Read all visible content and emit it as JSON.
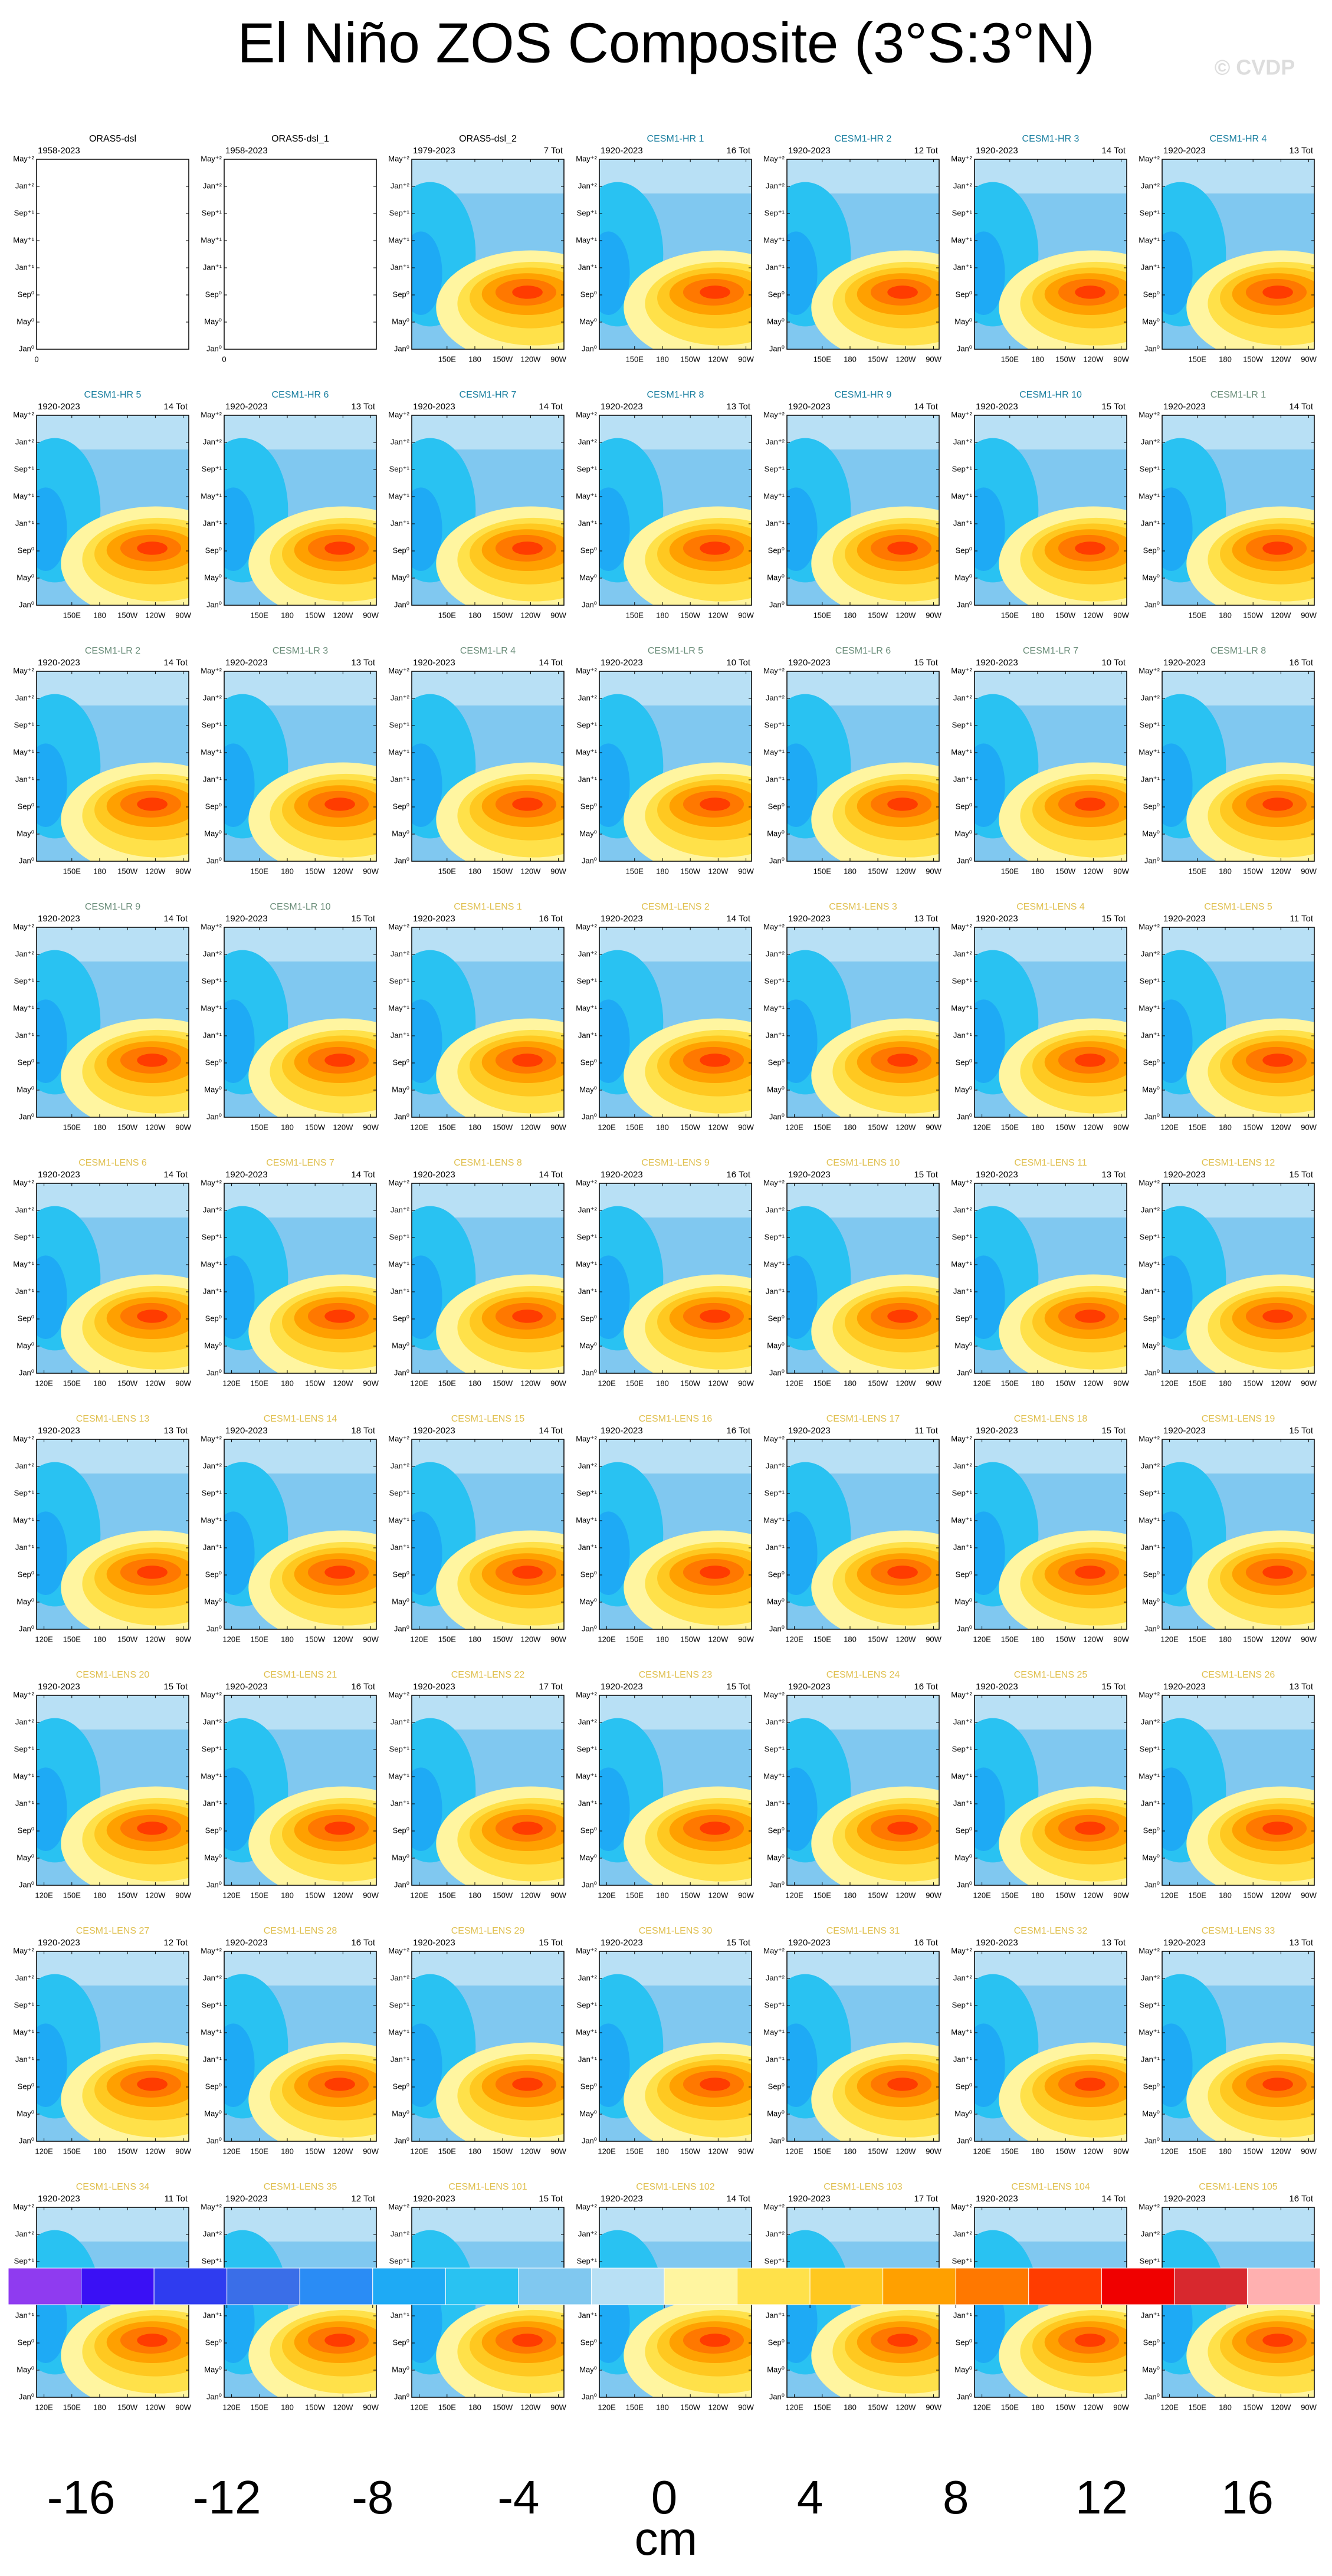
{
  "chart_data": {
    "type": "hovmoller-grid",
    "title": "El Niño ZOS Composite (3°S:3°N)",
    "watermark": "© CVDP",
    "ylim": [
      0,
      28
    ],
    "yticks": [
      {
        "value": 0,
        "label": "Jan⁰"
      },
      {
        "value": 4,
        "label": "May⁰"
      },
      {
        "value": 8,
        "label": "Sep⁰"
      },
      {
        "value": 12,
        "label": "Jan⁺¹"
      },
      {
        "value": 16,
        "label": "May⁺¹"
      },
      {
        "value": 20,
        "label": "Sep⁺¹"
      },
      {
        "value": 24,
        "label": "Jan⁺²"
      },
      {
        "value": 28,
        "label": "May⁺²"
      }
    ],
    "axes": {
      "hr": {
        "xlim": [
          112,
          276
        ],
        "xticks": [
          {
            "value": 150,
            "label": "150E"
          },
          180,
          {
            "value": 210,
            "label": "150W"
          },
          {
            "value": 240,
            "label": "120W"
          },
          {
            "value": 270,
            "label": "90W"
          }
        ]
      },
      "lens": {
        "xlim": [
          112,
          276
        ],
        "xticks": [
          {
            "value": 120,
            "label": "120E"
          },
          {
            "value": 150,
            "label": "150E"
          },
          180,
          {
            "value": 210,
            "label": "150W"
          },
          {
            "value": 240,
            "label": "120W"
          },
          {
            "value": 270,
            "label": "90W"
          }
        ]
      },
      "empty": {
        "xlim": [
          0,
          1
        ],
        "xticks": [
          0
        ]
      }
    },
    "panels": [
      {
        "name": "ORAS5-dsl",
        "years": "1958-2023",
        "axes": "empty",
        "color": "#000000"
      },
      {
        "name": "ORAS5-dsl_1",
        "years": "1958-2023",
        "axes": "empty",
        "color": "#000000"
      },
      {
        "name": "ORAS5-dsl_2",
        "years": "1979-2023",
        "total": "7 Tot",
        "axes": "hr",
        "color": "#000000"
      },
      {
        "name": "CESM1-HR 1",
        "years": "1920-2023",
        "total": "16 Tot",
        "axes": "hr",
        "color": "#1a7fa0"
      },
      {
        "name": "CESM1-HR 2",
        "years": "1920-2023",
        "total": "12 Tot",
        "axes": "hr",
        "color": "#1a7fa0"
      },
      {
        "name": "CESM1-HR 3",
        "years": "1920-2023",
        "total": "14 Tot",
        "axes": "hr",
        "color": "#1a7fa0"
      },
      {
        "name": "CESM1-HR 4",
        "years": "1920-2023",
        "total": "13 Tot",
        "axes": "hr",
        "color": "#1a7fa0"
      },
      {
        "name": "CESM1-HR 5",
        "years": "1920-2023",
        "total": "14 Tot",
        "axes": "hr",
        "color": "#1a7fa0"
      },
      {
        "name": "CESM1-HR 6",
        "years": "1920-2023",
        "total": "13 Tot",
        "axes": "hr",
        "color": "#1a7fa0"
      },
      {
        "name": "CESM1-HR 7",
        "years": "1920-2023",
        "total": "14 Tot",
        "axes": "hr",
        "color": "#1a7fa0"
      },
      {
        "name": "CESM1-HR 8",
        "years": "1920-2023",
        "total": "13 Tot",
        "axes": "hr",
        "color": "#1a7fa0"
      },
      {
        "name": "CESM1-HR 9",
        "years": "1920-2023",
        "total": "14 Tot",
        "axes": "hr",
        "color": "#1a7fa0"
      },
      {
        "name": "CESM1-HR 10",
        "years": "1920-2023",
        "total": "15 Tot",
        "axes": "hr",
        "color": "#1a7fa0"
      },
      {
        "name": "CESM1-LR 1",
        "years": "1920-2023",
        "total": "14 Tot",
        "axes": "hr",
        "color": "#6b8e7a"
      },
      {
        "name": "CESM1-LR 2",
        "years": "1920-2023",
        "total": "14 Tot",
        "axes": "hr",
        "color": "#6b8e7a"
      },
      {
        "name": "CESM1-LR 3",
        "years": "1920-2023",
        "total": "13 Tot",
        "axes": "hr",
        "color": "#6b8e7a"
      },
      {
        "name": "CESM1-LR 4",
        "years": "1920-2023",
        "total": "14 Tot",
        "axes": "hr",
        "color": "#6b8e7a"
      },
      {
        "name": "CESM1-LR 5",
        "years": "1920-2023",
        "total": "10 Tot",
        "axes": "hr",
        "color": "#6b8e7a"
      },
      {
        "name": "CESM1-LR 6",
        "years": "1920-2023",
        "total": "15 Tot",
        "axes": "hr",
        "color": "#6b8e7a"
      },
      {
        "name": "CESM1-LR 7",
        "years": "1920-2023",
        "total": "10 Tot",
        "axes": "hr",
        "color": "#6b8e7a"
      },
      {
        "name": "CESM1-LR 8",
        "years": "1920-2023",
        "total": "16 Tot",
        "axes": "hr",
        "color": "#6b8e7a"
      },
      {
        "name": "CESM1-LR 9",
        "years": "1920-2023",
        "total": "14 Tot",
        "axes": "hr",
        "color": "#6b8e7a"
      },
      {
        "name": "CESM1-LR 10",
        "years": "1920-2023",
        "total": "15 Tot",
        "axes": "hr",
        "color": "#6b8e7a"
      },
      {
        "name": "CESM1-LENS 1",
        "years": "1920-2023",
        "total": "16 Tot",
        "axes": "lens",
        "color": "#e0c050"
      },
      {
        "name": "CESM1-LENS 2",
        "years": "1920-2023",
        "total": "14 Tot",
        "axes": "lens",
        "color": "#e0c050"
      },
      {
        "name": "CESM1-LENS 3",
        "years": "1920-2023",
        "total": "13 Tot",
        "axes": "lens",
        "color": "#e0c050"
      },
      {
        "name": "CESM1-LENS 4",
        "years": "1920-2023",
        "total": "15 Tot",
        "axes": "lens",
        "color": "#e0c050"
      },
      {
        "name": "CESM1-LENS 5",
        "years": "1920-2023",
        "total": "11 Tot",
        "axes": "lens",
        "color": "#e0c050"
      },
      {
        "name": "CESM1-LENS 6",
        "years": "1920-2023",
        "total": "14 Tot",
        "axes": "lens",
        "color": "#e0c050"
      },
      {
        "name": "CESM1-LENS 7",
        "years": "1920-2023",
        "total": "14 Tot",
        "axes": "lens",
        "color": "#e0c050"
      },
      {
        "name": "CESM1-LENS 8",
        "years": "1920-2023",
        "total": "14 Tot",
        "axes": "lens",
        "color": "#e0c050"
      },
      {
        "name": "CESM1-LENS 9",
        "years": "1920-2023",
        "total": "16 Tot",
        "axes": "lens",
        "color": "#e0c050"
      },
      {
        "name": "CESM1-LENS 10",
        "years": "1920-2023",
        "total": "15 Tot",
        "axes": "lens",
        "color": "#e0c050"
      },
      {
        "name": "CESM1-LENS 11",
        "years": "1920-2023",
        "total": "13 Tot",
        "axes": "lens",
        "color": "#e0c050"
      },
      {
        "name": "CESM1-LENS 12",
        "years": "1920-2023",
        "total": "15 Tot",
        "axes": "lens",
        "color": "#e0c050"
      },
      {
        "name": "CESM1-LENS 13",
        "years": "1920-2023",
        "total": "13 Tot",
        "axes": "lens",
        "color": "#e0c050"
      },
      {
        "name": "CESM1-LENS 14",
        "years": "1920-2023",
        "total": "18 Tot",
        "axes": "lens",
        "color": "#e0c050"
      },
      {
        "name": "CESM1-LENS 15",
        "years": "1920-2023",
        "total": "14 Tot",
        "axes": "lens",
        "color": "#e0c050"
      },
      {
        "name": "CESM1-LENS 16",
        "years": "1920-2023",
        "total": "16 Tot",
        "axes": "lens",
        "color": "#e0c050"
      },
      {
        "name": "CESM1-LENS 17",
        "years": "1920-2023",
        "total": "11 Tot",
        "axes": "lens",
        "color": "#e0c050"
      },
      {
        "name": "CESM1-LENS 18",
        "years": "1920-2023",
        "total": "15 Tot",
        "axes": "lens",
        "color": "#e0c050"
      },
      {
        "name": "CESM1-LENS 19",
        "years": "1920-2023",
        "total": "15 Tot",
        "axes": "lens",
        "color": "#e0c050"
      },
      {
        "name": "CESM1-LENS 20",
        "years": "1920-2023",
        "total": "15 Tot",
        "axes": "lens",
        "color": "#e0c050"
      },
      {
        "name": "CESM1-LENS 21",
        "years": "1920-2023",
        "total": "16 Tot",
        "axes": "lens",
        "color": "#e0c050"
      },
      {
        "name": "CESM1-LENS 22",
        "years": "1920-2023",
        "total": "17 Tot",
        "axes": "lens",
        "color": "#e0c050"
      },
      {
        "name": "CESM1-LENS 23",
        "years": "1920-2023",
        "total": "15 Tot",
        "axes": "lens",
        "color": "#e0c050"
      },
      {
        "name": "CESM1-LENS 24",
        "years": "1920-2023",
        "total": "16 Tot",
        "axes": "lens",
        "color": "#e0c050"
      },
      {
        "name": "CESM1-LENS 25",
        "years": "1920-2023",
        "total": "15 Tot",
        "axes": "lens",
        "color": "#e0c050"
      },
      {
        "name": "CESM1-LENS 26",
        "years": "1920-2023",
        "total": "13 Tot",
        "axes": "lens",
        "color": "#e0c050"
      },
      {
        "name": "CESM1-LENS 27",
        "years": "1920-2023",
        "total": "12 Tot",
        "axes": "lens",
        "color": "#e0c050"
      },
      {
        "name": "CESM1-LENS 28",
        "years": "1920-2023",
        "total": "16 Tot",
        "axes": "lens",
        "color": "#e0c050"
      },
      {
        "name": "CESM1-LENS 29",
        "years": "1920-2023",
        "total": "15 Tot",
        "axes": "lens",
        "color": "#e0c050"
      },
      {
        "name": "CESM1-LENS 30",
        "years": "1920-2023",
        "total": "15 Tot",
        "axes": "lens",
        "color": "#e0c050"
      },
      {
        "name": "CESM1-LENS 31",
        "years": "1920-2023",
        "total": "16 Tot",
        "axes": "lens",
        "color": "#e0c050"
      },
      {
        "name": "CESM1-LENS 32",
        "years": "1920-2023",
        "total": "13 Tot",
        "axes": "lens",
        "color": "#e0c050"
      },
      {
        "name": "CESM1-LENS 33",
        "years": "1920-2023",
        "total": "13 Tot",
        "axes": "lens",
        "color": "#e0c050"
      },
      {
        "name": "CESM1-LENS 34",
        "years": "1920-2023",
        "total": "11 Tot",
        "axes": "lens",
        "color": "#e0c050"
      },
      {
        "name": "CESM1-LENS 35",
        "years": "1920-2023",
        "total": "12 Tot",
        "axes": "lens",
        "color": "#e0c050"
      },
      {
        "name": "CESM1-LENS 101",
        "years": "1920-2023",
        "total": "15 Tot",
        "axes": "lens",
        "color": "#e0c050"
      },
      {
        "name": "CESM1-LENS 102",
        "years": "1920-2023",
        "total": "14 Tot",
        "axes": "lens",
        "color": "#e0c050"
      },
      {
        "name": "CESM1-LENS 103",
        "years": "1920-2023",
        "total": "17 Tot",
        "axes": "lens",
        "color": "#e0c050"
      },
      {
        "name": "CESM1-LENS 104",
        "years": "1920-2023",
        "total": "14 Tot",
        "axes": "lens",
        "color": "#e0c050"
      },
      {
        "name": "CESM1-LENS 105",
        "years": "1920-2023",
        "total": "16 Tot",
        "axes": "lens",
        "color": "#e0c050"
      }
    ],
    "colorbar": {
      "label": "cm",
      "levels": [
        -16,
        -14,
        -12,
        -10,
        -8,
        -6,
        -4,
        -2,
        0,
        2,
        4,
        6,
        8,
        10,
        12,
        14,
        16
      ],
      "ticks": [
        -16,
        -12,
        -8,
        -4,
        0,
        4,
        8,
        12,
        16
      ],
      "colors": [
        "#8f3bf0",
        "#3a10f5",
        "#2f3cf0",
        "#3a6ee8",
        "#2a8cf5",
        "#1eaaf5",
        "#29c2f2",
        "#80c8f0",
        "#b8e0f5",
        "#fff5a0",
        "#ffe14a",
        "#ffc820",
        "#ffa000",
        "#ff7800",
        "#ff3c00",
        "#f00000",
        "#d8282e",
        "#ffb0b0"
      ]
    }
  }
}
